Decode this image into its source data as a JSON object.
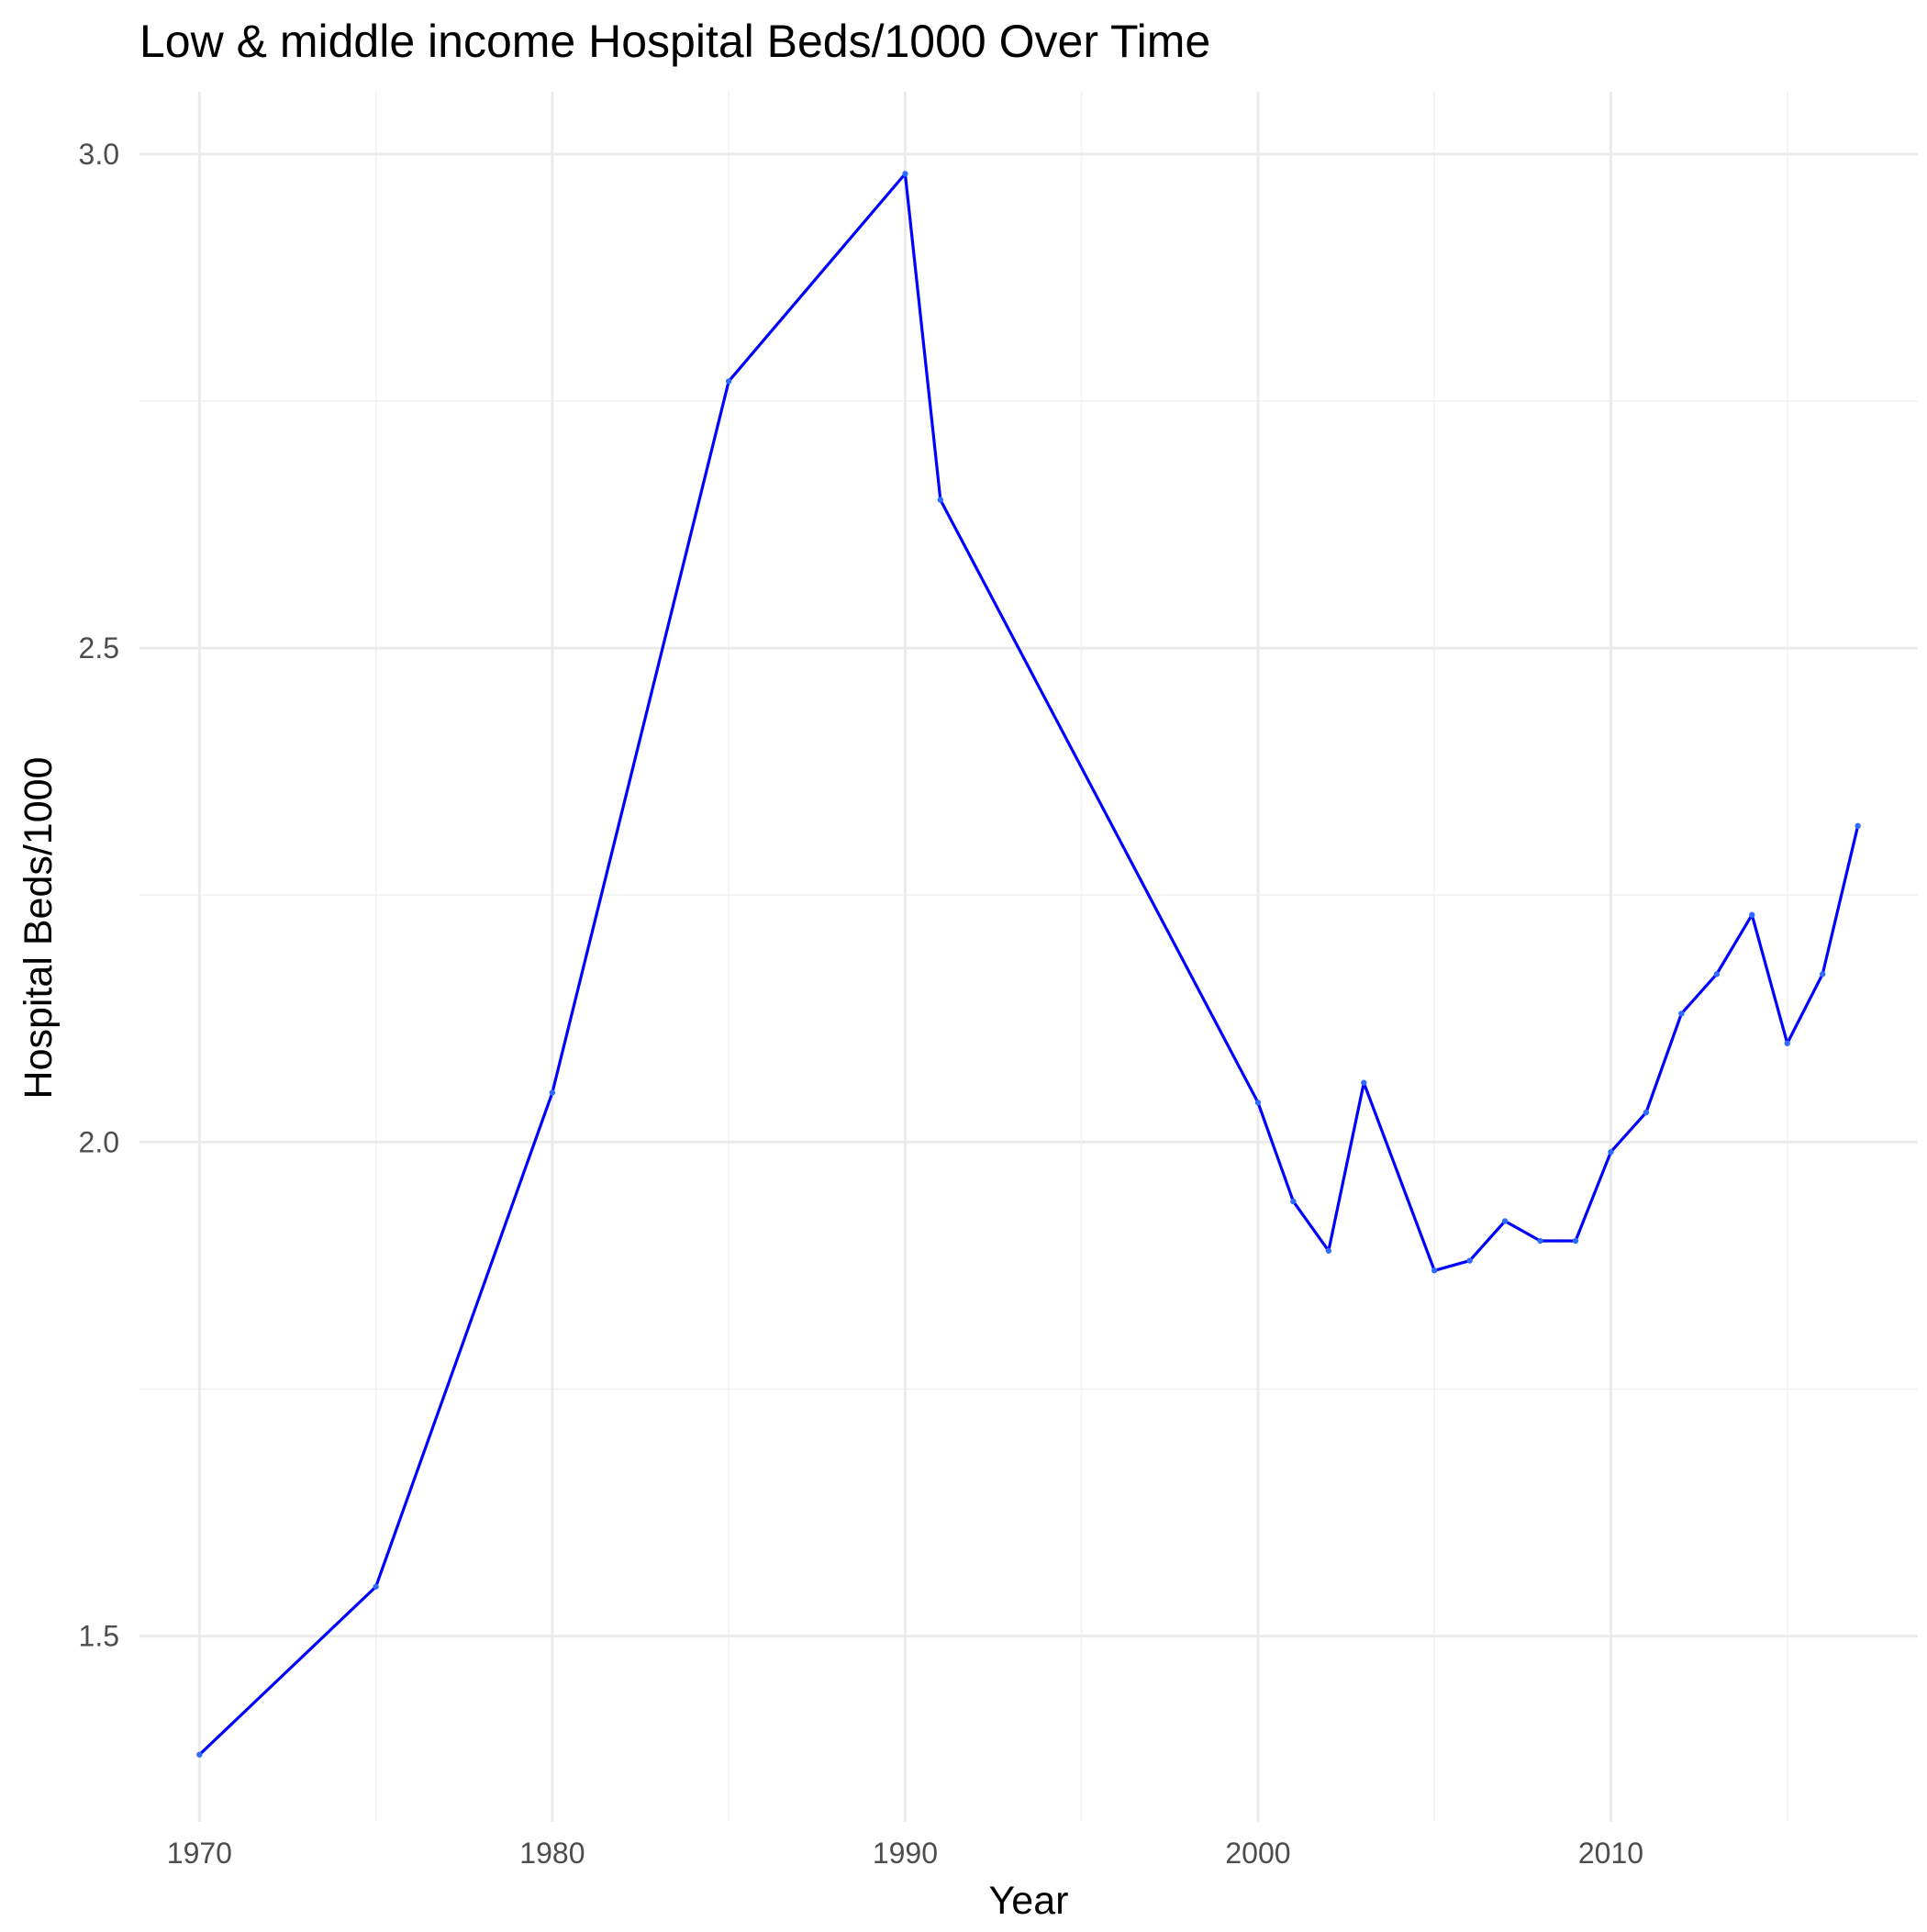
{
  "chart_data": {
    "type": "line",
    "title": "Low & middle income Hospital Beds/1000 Over Time",
    "xlabel": "Year",
    "ylabel": "Hospital Beds/1000",
    "xlim": [
      1968.3,
      2018.7
    ],
    "ylim": [
      1.312,
      3.063
    ],
    "x_ticks": [
      1970,
      1980,
      1990,
      2000,
      2010
    ],
    "x_minor_ticks": [
      1975,
      1985,
      1995,
      2005,
      2015
    ],
    "y_ticks": [
      1.5,
      2.0,
      2.5,
      3.0
    ],
    "y_tick_labels": [
      "1.5",
      "2.0",
      "2.5",
      "3.0"
    ],
    "y_minor_ticks": [
      1.75,
      2.25,
      2.75
    ],
    "grid": true,
    "legend": "none",
    "line_color": "#0000ff",
    "point_color": "#2f6bff",
    "series": [
      {
        "x": [
          1970,
          1975,
          1980,
          1985,
          1990,
          1991,
          2000,
          2001,
          2002,
          2003,
          2005,
          2006,
          2007,
          2008,
          2009,
          2010,
          2011,
          2012,
          2013,
          2014,
          2015,
          2016,
          2017
        ],
        "values": [
          1.38,
          1.55,
          2.05,
          2.77,
          2.98,
          2.65,
          2.04,
          1.94,
          1.89,
          2.06,
          1.87,
          1.88,
          1.92,
          1.9,
          1.9,
          1.99,
          2.03,
          2.13,
          2.17,
          2.23,
          2.1,
          2.17,
          2.32
        ]
      }
    ]
  }
}
